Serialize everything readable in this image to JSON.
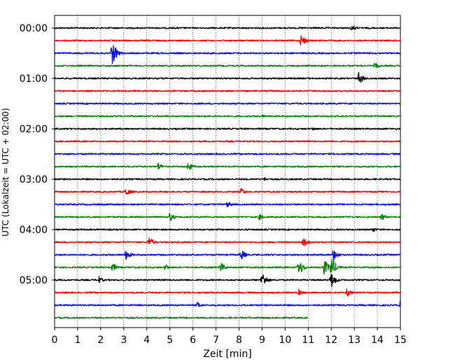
{
  "chart_data": {
    "type": "line",
    "title": "",
    "xlabel": "Zeit  [min]",
    "ylabel": "UTC (Lokalzeit = UTC + 02:00)",
    "xlim": [
      0,
      15
    ],
    "x_ticks": [
      "0",
      "1",
      "2",
      "3",
      "4",
      "5",
      "6",
      "7",
      "8",
      "9",
      "10",
      "11",
      "12",
      "13",
      "14",
      "15"
    ],
    "y_tick_labels": [
      "00:00",
      "01:00",
      "02:00",
      "03:00",
      "04:00",
      "05:00"
    ],
    "row_minutes": 15,
    "grid": "vertical dotted at each minute",
    "colors": [
      "#000000",
      "#ff0000",
      "#0000ff",
      "#008000"
    ],
    "traces": [
      {
        "start": "00:00",
        "color": "#000000",
        "events": [
          [
            12.9,
            5
          ]
        ]
      },
      {
        "start": "00:15",
        "color": "#ff0000",
        "events": [
          [
            10.7,
            10
          ]
        ]
      },
      {
        "start": "00:30",
        "color": "#0000ff",
        "events": [
          [
            2.5,
            17
          ]
        ]
      },
      {
        "start": "00:45",
        "color": "#008000",
        "events": [
          [
            13.9,
            5
          ]
        ]
      },
      {
        "start": "01:00",
        "color": "#000000",
        "events": [
          [
            13.2,
            10
          ]
        ]
      },
      {
        "start": "01:15",
        "color": "#ff0000",
        "events": []
      },
      {
        "start": "01:30",
        "color": "#0000ff",
        "events": []
      },
      {
        "start": "01:45",
        "color": "#008000",
        "events": [
          [
            9.0,
            3
          ]
        ]
      },
      {
        "start": "02:00",
        "color": "#000000",
        "events": [
          [
            11.2,
            3
          ]
        ]
      },
      {
        "start": "02:15",
        "color": "#ff0000",
        "events": []
      },
      {
        "start": "02:30",
        "color": "#0000ff",
        "events": []
      },
      {
        "start": "02:45",
        "color": "#008000",
        "events": [
          [
            4.5,
            6
          ],
          [
            5.8,
            7
          ]
        ]
      },
      {
        "start": "03:00",
        "color": "#000000",
        "events": [
          [
            9.1,
            3
          ]
        ]
      },
      {
        "start": "03:15",
        "color": "#ff0000",
        "events": [
          [
            3.1,
            7
          ],
          [
            8.1,
            6
          ]
        ]
      },
      {
        "start": "03:30",
        "color": "#0000ff",
        "events": [
          [
            7.5,
            5
          ]
        ]
      },
      {
        "start": "03:45",
        "color": "#008000",
        "events": [
          [
            5.0,
            7
          ],
          [
            8.9,
            5
          ],
          [
            14.2,
            5
          ]
        ]
      },
      {
        "start": "04:00",
        "color": "#000000",
        "events": [
          [
            13.8,
            4
          ]
        ]
      },
      {
        "start": "04:15",
        "color": "#ff0000",
        "events": [
          [
            4.1,
            8
          ],
          [
            10.8,
            7
          ]
        ]
      },
      {
        "start": "04:30",
        "color": "#0000ff",
        "events": [
          [
            3.1,
            8
          ],
          [
            8.1,
            8
          ],
          [
            12.1,
            10
          ]
        ]
      },
      {
        "start": "04:45",
        "color": "#008000",
        "events": [
          [
            2.5,
            7
          ],
          [
            4.8,
            5
          ],
          [
            7.2,
            8
          ],
          [
            10.6,
            12
          ],
          [
            11.7,
            12
          ],
          [
            12.0,
            17
          ]
        ]
      },
      {
        "start": "05:00",
        "color": "#000000",
        "events": [
          [
            1.9,
            6
          ],
          [
            9.0,
            12
          ],
          [
            12.0,
            12
          ]
        ]
      },
      {
        "start": "05:15",
        "color": "#ff0000",
        "events": [
          [
            10.6,
            5
          ],
          [
            12.7,
            7
          ]
        ]
      },
      {
        "start": "05:30",
        "color": "#0000ff",
        "events": [
          [
            6.2,
            5
          ],
          [
            15.0,
            7
          ]
        ]
      },
      {
        "start": "05:45",
        "color": "#008000",
        "events": [],
        "end_minute": 11.0
      }
    ]
  }
}
